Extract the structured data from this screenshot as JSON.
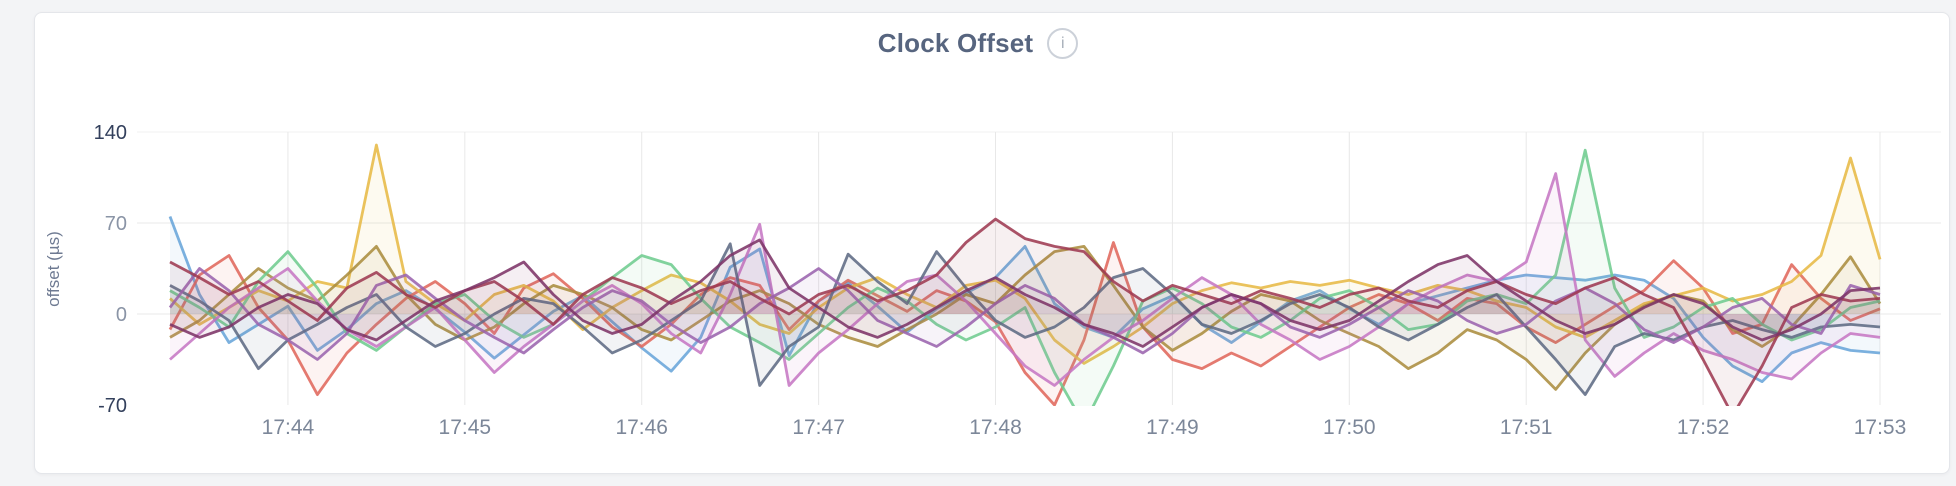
{
  "card": {
    "title": "Clock Offset",
    "info_glyph": "i"
  },
  "chart_data": {
    "type": "line",
    "title": "Clock Offset",
    "xlabel": "",
    "ylabel": "offset (µs)",
    "ylim": [
      -70,
      140
    ],
    "y_ticks": [
      140,
      70,
      0,
      -70
    ],
    "x_ticks": [
      "17:44",
      "17:45",
      "17:46",
      "17:47",
      "17:48",
      "17:49",
      "17:50",
      "17:51",
      "17:52",
      "17:53"
    ],
    "x_start": "17:43:20",
    "x_interval_seconds": 10,
    "grid": true,
    "legend_position": "none",
    "area_fill": true,
    "series": [
      {
        "name": "blue",
        "color": "#69a5da",
        "values": [
          75,
          15,
          -22,
          -8,
          6,
          -28,
          -12,
          8,
          18,
          4,
          -14,
          -34,
          -16,
          2,
          14,
          -6,
          -26,
          -44,
          -18,
          36,
          50,
          -32,
          10,
          24,
          6,
          -14,
          4,
          16,
          28,
          52,
          8,
          -10,
          -18,
          4,
          14,
          -8,
          -22,
          -6,
          10,
          18,
          4,
          -8,
          8,
          14,
          20,
          26,
          30,
          28,
          26,
          30,
          26,
          12,
          -18,
          -40,
          -52,
          -30,
          -22,
          -28,
          -30
        ]
      },
      {
        "name": "coral",
        "color": "#e0685c",
        "values": [
          -12,
          30,
          45,
          5,
          -20,
          -62,
          -30,
          -8,
          12,
          25,
          8,
          -15,
          20,
          31,
          12,
          -10,
          -25,
          -8,
          15,
          28,
          22,
          -12,
          10,
          26,
          14,
          2,
          18,
          10,
          -6,
          -45,
          -70,
          -20,
          55,
          -10,
          -35,
          -42,
          -30,
          -40,
          -25,
          -10,
          5,
          15,
          8,
          -5,
          12,
          8,
          -10,
          -22,
          -8,
          6,
          18,
          41,
          20,
          -15,
          -8,
          38,
          12,
          -5,
          4
        ]
      },
      {
        "name": "gold",
        "color": "#e7ba45",
        "values": [
          12,
          -8,
          5,
          18,
          10,
          25,
          20,
          130,
          25,
          8,
          -5,
          15,
          22,
          10,
          -12,
          5,
          18,
          30,
          24,
          10,
          -8,
          -15,
          5,
          20,
          28,
          15,
          5,
          22,
          26,
          12,
          -20,
          -38,
          -25,
          -10,
          8,
          18,
          24,
          20,
          25,
          22,
          26,
          20,
          15,
          22,
          18,
          10,
          5,
          -10,
          -18,
          -5,
          8,
          14,
          20,
          10,
          15,
          25,
          45,
          120,
          42
        ]
      },
      {
        "name": "olive",
        "color": "#ab8d3f",
        "values": [
          -18,
          -5,
          15,
          35,
          20,
          10,
          30,
          52,
          15,
          -8,
          -20,
          -10,
          8,
          22,
          15,
          5,
          -12,
          -20,
          -5,
          10,
          18,
          8,
          -8,
          -18,
          -25,
          -12,
          0,
          15,
          8,
          30,
          48,
          52,
          22,
          -10,
          -28,
          -15,
          2,
          15,
          10,
          -5,
          -15,
          -25,
          -42,
          -30,
          -12,
          -20,
          -35,
          -58,
          -30,
          -8,
          6,
          15,
          10,
          -12,
          -25,
          -10,
          15,
          44,
          8
        ]
      },
      {
        "name": "green",
        "color": "#70cc90",
        "values": [
          18,
          5,
          -10,
          25,
          48,
          20,
          -15,
          -28,
          -10,
          8,
          15,
          -5,
          -18,
          -8,
          10,
          28,
          45,
          38,
          12,
          -10,
          -22,
          -35,
          -15,
          5,
          20,
          10,
          -8,
          -20,
          -10,
          5,
          -45,
          -85,
          -40,
          10,
          20,
          8,
          -10,
          -18,
          -5,
          12,
          18,
          5,
          -12,
          -8,
          10,
          15,
          8,
          30,
          126,
          20,
          -18,
          -10,
          5,
          12,
          -8,
          -20,
          -12,
          5,
          10
        ]
      },
      {
        "name": "orchid",
        "color": "#c678c4",
        "values": [
          -35,
          -15,
          5,
          20,
          35,
          10,
          -12,
          -25,
          -10,
          5,
          -20,
          -45,
          -25,
          -8,
          10,
          22,
          8,
          -15,
          -30,
          15,
          69,
          -55,
          -30,
          -12,
          8,
          25,
          30,
          10,
          -15,
          -40,
          -55,
          -35,
          -18,
          -5,
          12,
          28,
          15,
          -8,
          -20,
          -35,
          -25,
          -10,
          8,
          20,
          30,
          25,
          40,
          108,
          -20,
          -48,
          -30,
          -15,
          -28,
          -35,
          -45,
          -50,
          -30,
          -15,
          -18
        ]
      },
      {
        "name": "slate",
        "color": "#5f6b84",
        "values": [
          22,
          10,
          -5,
          -42,
          -20,
          -8,
          5,
          15,
          -10,
          -25,
          -15,
          0,
          12,
          8,
          -10,
          -30,
          -20,
          -5,
          10,
          54,
          -55,
          -25,
          -10,
          46,
          25,
          8,
          48,
          20,
          -5,
          -18,
          -10,
          5,
          28,
          35,
          15,
          -8,
          -15,
          -5,
          8,
          15,
          5,
          -10,
          -20,
          -8,
          5,
          15,
          -10,
          -35,
          -62,
          -25,
          -15,
          -20,
          -10,
          -5,
          -12,
          -18,
          -10,
          -8,
          -10
        ]
      },
      {
        "name": "violet",
        "color": "#9b64ae",
        "values": [
          5,
          35,
          18,
          -8,
          -20,
          -35,
          -15,
          22,
          30,
          12,
          -5,
          -18,
          -30,
          -12,
          5,
          18,
          10,
          -8,
          -22,
          -10,
          8,
          20,
          35,
          18,
          -5,
          -15,
          -25,
          -10,
          8,
          22,
          12,
          -8,
          -18,
          -30,
          -15,
          5,
          15,
          8,
          -10,
          -18,
          -8,
          5,
          18,
          10,
          -5,
          -15,
          -8,
          10,
          20,
          8,
          -12,
          -22,
          -10,
          5,
          12,
          -8,
          -15,
          22,
          15
        ]
      },
      {
        "name": "brick",
        "color": "#9e3a52",
        "values": [
          40,
          28,
          15,
          25,
          10,
          -5,
          20,
          32,
          15,
          5,
          18,
          25,
          10,
          -8,
          15,
          28,
          20,
          8,
          18,
          25,
          12,
          0,
          15,
          22,
          10,
          18,
          30,
          55,
          73,
          58,
          52,
          48,
          25,
          10,
          22,
          15,
          8,
          18,
          12,
          5,
          15,
          20,
          10,
          5,
          18,
          25,
          15,
          8,
          20,
          28,
          15,
          5,
          -35,
          -78,
          -40,
          5,
          15,
          10,
          12
        ]
      },
      {
        "name": "plum",
        "color": "#7d3468",
        "values": [
          -8,
          -18,
          -10,
          5,
          15,
          8,
          -12,
          -20,
          -5,
          10,
          18,
          28,
          40,
          15,
          -5,
          -15,
          -8,
          10,
          25,
          45,
          57,
          20,
          5,
          -10,
          -18,
          -8,
          5,
          18,
          28,
          15,
          5,
          -8,
          -15,
          -25,
          -10,
          5,
          15,
          8,
          -5,
          -12,
          -5,
          10,
          25,
          38,
          45,
          25,
          10,
          -5,
          -15,
          -8,
          5,
          15,
          8,
          -10,
          -20,
          -12,
          0,
          18,
          20
        ]
      }
    ]
  }
}
